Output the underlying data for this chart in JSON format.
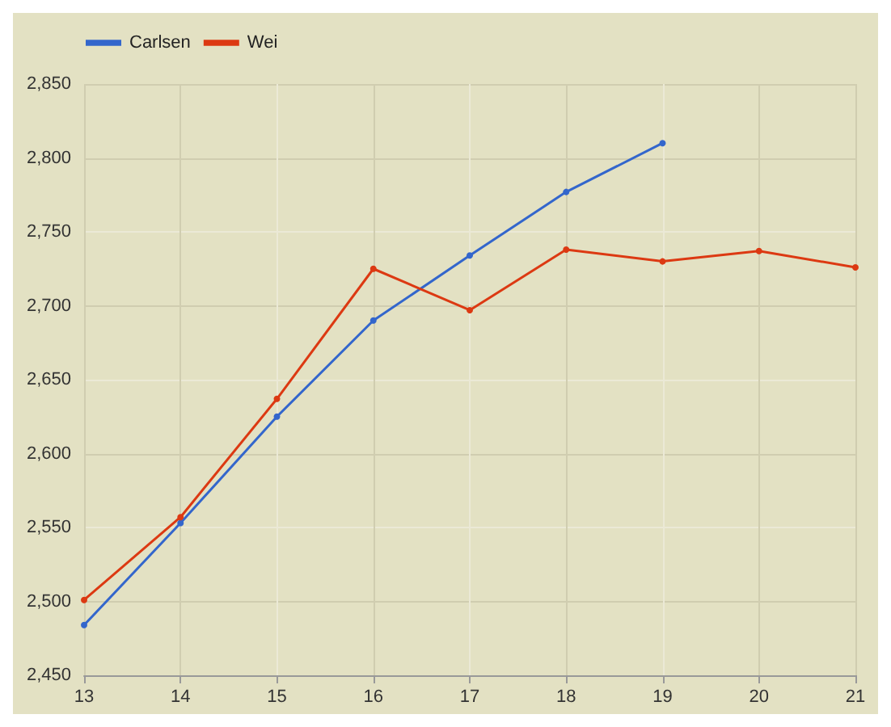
{
  "chart_data": {
    "type": "line",
    "x": [
      13,
      14,
      15,
      16,
      17,
      18,
      19,
      20,
      21
    ],
    "series": [
      {
        "name": "Carlsen",
        "color": "#3366cc",
        "values": [
          2484,
          2553,
          2625,
          2690,
          2734,
          2777,
          2810,
          null,
          null
        ]
      },
      {
        "name": "Wei",
        "color": "#dc3912",
        "values": [
          2501,
          2557,
          2637,
          2725,
          2697,
          2738,
          2730,
          2737,
          2726
        ]
      }
    ],
    "xlim": [
      13,
      21
    ],
    "xticks": [
      13,
      14,
      15,
      16,
      17,
      18,
      19,
      20,
      21
    ],
    "ylim": [
      2450,
      2850
    ],
    "yticks": [
      {
        "value": 2450,
        "label": "2,450"
      },
      {
        "value": 2500,
        "label": "2,500"
      },
      {
        "value": 2550,
        "label": "2,550"
      },
      {
        "value": 2600,
        "label": "2,600"
      },
      {
        "value": 2650,
        "label": "2,650"
      },
      {
        "value": 2700,
        "label": "2,700"
      },
      {
        "value": 2750,
        "label": "2,750"
      },
      {
        "value": 2800,
        "label": "2,800"
      },
      {
        "value": 2850,
        "label": "2,850"
      }
    ],
    "grid": true,
    "legend": "top left",
    "marker": "circle",
    "line_style": "solid"
  }
}
